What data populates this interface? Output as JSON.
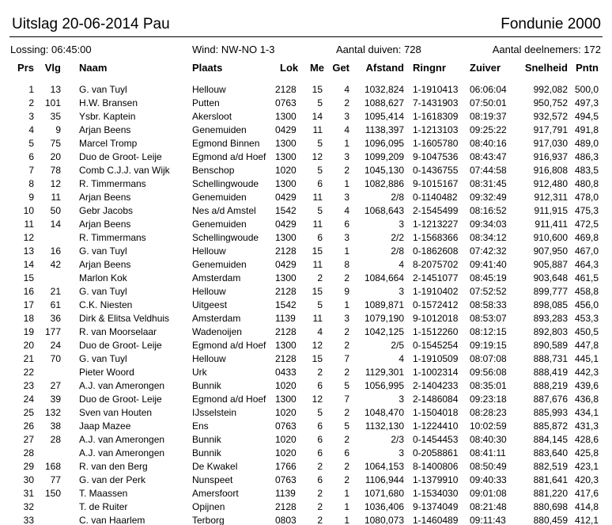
{
  "header": {
    "title": "Uitslag 20-06-2014 Pau",
    "organization": "Fondunie 2000"
  },
  "info": [
    "Lossing: 06:45:00",
    "Wind: NW-NO 1-3",
    "Aantal duiven: 728",
    "Aantal deelnemers: 172"
  ],
  "table": {
    "columns": [
      "Prs",
      "Vlg",
      "Naam",
      "Plaats",
      "Lok",
      "Me",
      "Get",
      "Afstand",
      "Ringnr",
      "Zuiver",
      "Snelheid",
      "Pntn"
    ],
    "rows": [
      [
        "1",
        "13",
        "G. van Tuyl",
        "Hellouw",
        "2128",
        "15",
        "4",
        "1032,824",
        "1-1910413",
        "06:06:04",
        "992,082",
        "500,0"
      ],
      [
        "2",
        "101",
        "H.W. Bransen",
        "Putten",
        "0763",
        "5",
        "2",
        "1088,627",
        "7-1431903",
        "07:50:01",
        "950,752",
        "497,3"
      ],
      [
        "3",
        "35",
        "Ysbr. Kaptein",
        "Akersloot",
        "1300",
        "14",
        "3",
        "1095,414",
        "1-1618309",
        "08:19:37",
        "932,572",
        "494,5"
      ],
      [
        "4",
        "9",
        "Arjan Beens",
        "Genemuiden",
        "0429",
        "11",
        "4",
        "1138,397",
        "1-1213103",
        "09:25:22",
        "917,791",
        "491,8"
      ],
      [
        "5",
        "75",
        "Marcel Tromp",
        "Egmond Binnen",
        "1300",
        "5",
        "1",
        "1096,095",
        "1-1605780",
        "08:40:16",
        "917,030",
        "489,0"
      ],
      [
        "6",
        "20",
        "Duo de Groot- Leije",
        "Egmond a/d Hoef",
        "1300",
        "12",
        "3",
        "1099,209",
        "9-1047536",
        "08:43:47",
        "916,937",
        "486,3"
      ],
      [
        "7",
        "78",
        "Comb C.J.J. van Wijk",
        "Benschop",
        "1020",
        "5",
        "2",
        "1045,130",
        "0-1436755",
        "07:44:58",
        "916,808",
        "483,5"
      ],
      [
        "8",
        "12",
        "R. Timmermans",
        "Schellingwoude",
        "1300",
        "6",
        "1",
        "1082,886",
        "9-1015167",
        "08:31:45",
        "912,480",
        "480,8"
      ],
      [
        "9",
        "11",
        "Arjan Beens",
        "Genemuiden",
        "0429",
        "11",
        "3",
        "2/8",
        "0-1140482",
        "09:32:49",
        "912,311",
        "478,0"
      ],
      [
        "10",
        "50",
        "Gebr Jacobs",
        "Nes a/d Amstel",
        "1542",
        "5",
        "4",
        "1068,643",
        "2-1545499",
        "08:16:52",
        "911,915",
        "475,3"
      ],
      [
        "11",
        "14",
        "Arjan Beens",
        "Genemuiden",
        "0429",
        "11",
        "6",
        "3",
        "1-1213227",
        "09:34:03",
        "911,411",
        "472,5"
      ],
      [
        "12",
        null,
        "R. Timmermans",
        "Schellingwoude",
        "1300",
        "6",
        "3",
        "2/2",
        "1-1568366",
        "08:34:12",
        "910,600",
        "469,8"
      ],
      [
        "13",
        "16",
        "G. van Tuyl",
        "Hellouw",
        "2128",
        "15",
        "1",
        "2/8",
        "0-1862608",
        "07:42:32",
        "907,950",
        "467,0"
      ],
      [
        "14",
        "42",
        "Arjan Beens",
        "Genemuiden",
        "0429",
        "11",
        "8",
        "4",
        "8-2075702",
        "09:41:40",
        "905,887",
        "464,3"
      ],
      [
        "15",
        null,
        "Marlon Kok",
        "Amsterdam",
        "1300",
        "2",
        "2",
        "1084,664",
        "2-1451077",
        "08:45:19",
        "903,648",
        "461,5"
      ],
      [
        "16",
        "21",
        "G. van Tuyl",
        "Hellouw",
        "2128",
        "15",
        "9",
        "3",
        "1-1910402",
        "07:52:52",
        "899,777",
        "458,8"
      ],
      [
        "17",
        "61",
        "C.K. Niesten",
        "Uitgeest",
        "1542",
        "5",
        "1",
        "1089,871",
        "0-1572412",
        "08:58:33",
        "898,085",
        "456,0"
      ],
      [
        "18",
        "36",
        "Dirk & Elitsa Veldhuis",
        "Amsterdam",
        "1139",
        "11",
        "3",
        "1079,190",
        "9-1012018",
        "08:53:07",
        "893,283",
        "453,3"
      ],
      [
        "19",
        "177",
        "R. van Moorselaar",
        "Wadenoijen",
        "2128",
        "4",
        "2",
        "1042,125",
        "1-1512260",
        "08:12:15",
        "892,803",
        "450,5"
      ],
      [
        "20",
        "24",
        "Duo de Groot- Leije",
        "Egmond a/d Hoef",
        "1300",
        "12",
        "2",
        "2/5",
        "0-1545254",
        "09:19:15",
        "890,589",
        "447,8"
      ],
      [
        "21",
        "70",
        "G. van Tuyl",
        "Hellouw",
        "2128",
        "15",
        "7",
        "4",
        "1-1910509",
        "08:07:08",
        "888,731",
        "445,1"
      ],
      [
        "22",
        null,
        "Pieter Woord",
        "Urk",
        "0433",
        "2",
        "2",
        "1129,301",
        "1-1002314",
        "09:56:08",
        "888,419",
        "442,3"
      ],
      [
        "23",
        "27",
        "A.J. van Amerongen",
        "Bunnik",
        "1020",
        "6",
        "5",
        "1056,995",
        "2-1404233",
        "08:35:01",
        "888,219",
        "439,6"
      ],
      [
        "24",
        "39",
        "Duo de Groot- Leije",
        "Egmond a/d Hoef",
        "1300",
        "12",
        "7",
        "3",
        "2-1486084",
        "09:23:18",
        "887,676",
        "436,8"
      ],
      [
        "25",
        "132",
        "Sven van Houten",
        "IJsselstein",
        "1020",
        "5",
        "2",
        "1048,470",
        "1-1504018",
        "08:28:23",
        "885,993",
        "434,1"
      ],
      [
        "26",
        "38",
        "Jaap Mazee",
        "Ens",
        "0763",
        "6",
        "5",
        "1132,130",
        "1-1224410",
        "10:02:59",
        "885,872",
        "431,3"
      ],
      [
        "27",
        "28",
        "A.J. van Amerongen",
        "Bunnik",
        "1020",
        "6",
        "2",
        "2/3",
        "0-1454453",
        "08:40:30",
        "884,145",
        "428,6"
      ],
      [
        "28",
        null,
        "A.J. van Amerongen",
        "Bunnik",
        "1020",
        "6",
        "6",
        "3",
        "0-2058861",
        "08:41:11",
        "883,640",
        "425,8"
      ],
      [
        "29",
        "168",
        "R. van den Berg",
        "De Kwakel",
        "1766",
        "2",
        "2",
        "1064,153",
        "8-1400806",
        "08:50:49",
        "882,519",
        "423,1"
      ],
      [
        "30",
        "77",
        "G. van der Perk",
        "Nunspeet",
        "0763",
        "6",
        "2",
        "1106,944",
        "1-1379910",
        "09:40:33",
        "881,641",
        "420,3"
      ],
      [
        "31",
        "150",
        "T. Maassen",
        "Amersfoort",
        "1139",
        "2",
        "1",
        "1071,680",
        "1-1534030",
        "09:01:08",
        "881,220",
        "417,6"
      ],
      [
        "32",
        null,
        "T. de Ruiter",
        "Opijnen",
        "2128",
        "2",
        "1",
        "1036,406",
        "9-1374049",
        "08:21:48",
        "880,698",
        "414,8"
      ],
      [
        "33",
        null,
        "C. van Haarlem",
        "Terborg",
        "0803",
        "2",
        "1",
        "1080,073",
        "1-1460489",
        "09:11:43",
        "880,459",
        "412,1"
      ]
    ]
  }
}
